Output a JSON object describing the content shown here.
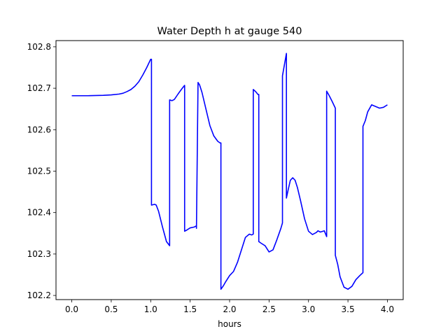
{
  "chart_data": {
    "type": "line",
    "title": "Water Depth h at gauge 540",
    "xlabel": "hours",
    "ylabel": "",
    "xlim": [
      -0.2,
      4.2
    ],
    "ylim": [
      102.19,
      102.815
    ],
    "xticks": [
      0.0,
      0.5,
      1.0,
      1.5,
      2.0,
      2.5,
      3.0,
      3.5,
      4.0
    ],
    "xtick_labels": [
      "0.0",
      "0.5",
      "1.0",
      "1.5",
      "2.0",
      "2.5",
      "3.0",
      "3.5",
      "4.0"
    ],
    "yticks": [
      102.2,
      102.3,
      102.4,
      102.5,
      102.6,
      102.7,
      102.8
    ],
    "ytick_labels": [
      "102.2",
      "102.3",
      "102.4",
      "102.5",
      "102.6",
      "102.7",
      "102.8"
    ],
    "grid": false,
    "series": [
      {
        "color": "#0000ff",
        "x": [
          0.0,
          0.2,
          0.4,
          0.5,
          0.6,
          0.65,
          0.7,
          0.75,
          0.8,
          0.85,
          0.9,
          0.95,
          1.0,
          1.01,
          1.01,
          1.05,
          1.07,
          1.1,
          1.15,
          1.2,
          1.24,
          1.24,
          1.27,
          1.3,
          1.35,
          1.4,
          1.43,
          1.43,
          1.45,
          1.5,
          1.55,
          1.58,
          1.58,
          1.6,
          1.62,
          1.65,
          1.7,
          1.75,
          1.8,
          1.85,
          1.88,
          1.89,
          1.89,
          1.92,
          1.95,
          2.0,
          2.05,
          2.1,
          2.15,
          2.2,
          2.25,
          2.28,
          2.3,
          2.3,
          2.33,
          2.36,
          2.37,
          2.37,
          2.4,
          2.45,
          2.5,
          2.55,
          2.6,
          2.65,
          2.67,
          2.67,
          2.72,
          2.72,
          2.74,
          2.77,
          2.8,
          2.83,
          2.86,
          2.9,
          2.95,
          3.0,
          3.05,
          3.1,
          3.12,
          3.15,
          3.2,
          3.23,
          3.23,
          3.26,
          3.3,
          3.34,
          3.34,
          3.37,
          3.4,
          3.45,
          3.5,
          3.55,
          3.6,
          3.65,
          3.69,
          3.69,
          3.72,
          3.75,
          3.8,
          3.85,
          3.9,
          3.95,
          4.0
        ],
        "y": [
          102.682,
          102.682,
          102.683,
          102.684,
          102.686,
          102.688,
          102.692,
          102.697,
          102.705,
          102.716,
          102.732,
          102.75,
          102.77,
          102.77,
          102.418,
          102.42,
          102.418,
          102.403,
          102.365,
          102.33,
          102.32,
          102.672,
          102.67,
          102.673,
          102.687,
          102.7,
          102.707,
          102.355,
          102.357,
          102.363,
          102.365,
          102.368,
          102.362,
          102.714,
          102.708,
          102.69,
          102.65,
          102.61,
          102.585,
          102.572,
          102.568,
          102.568,
          102.215,
          102.223,
          102.233,
          102.248,
          102.258,
          102.28,
          102.31,
          102.34,
          102.348,
          102.346,
          102.348,
          102.697,
          102.692,
          102.685,
          102.685,
          102.33,
          102.326,
          102.32,
          102.305,
          102.31,
          102.335,
          102.362,
          102.375,
          102.73,
          102.784,
          102.435,
          102.453,
          102.478,
          102.484,
          102.478,
          102.46,
          102.428,
          102.385,
          102.355,
          102.347,
          102.352,
          102.356,
          102.353,
          102.356,
          102.342,
          102.693,
          102.683,
          102.668,
          102.652,
          102.297,
          102.275,
          102.245,
          102.22,
          102.215,
          102.222,
          102.238,
          102.248,
          102.255,
          102.608,
          102.622,
          102.643,
          102.66,
          102.656,
          102.652,
          102.654,
          102.66
        ]
      }
    ]
  }
}
